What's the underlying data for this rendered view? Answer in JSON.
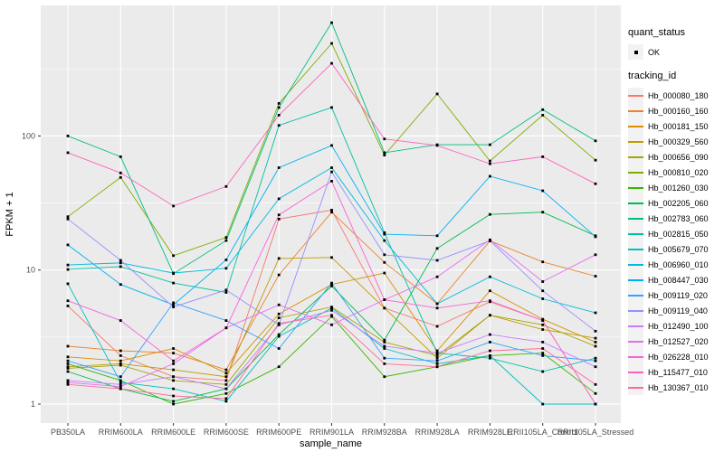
{
  "chart_data": {
    "type": "line",
    "title": "",
    "xlabel": "sample_name",
    "ylabel": "FPKM + 1",
    "yscale": "log10",
    "y_axis_ticks": [
      "1",
      "10",
      "100"
    ],
    "y_range": [
      0.7,
      950
    ],
    "grid": "major+minor, white on grey panel",
    "legend_position": "right",
    "panel_bg": "#EBEBEB",
    "categories": [
      "PB350LA",
      "RRIM600LA",
      "RRIM600LE",
      "RRIM600SE",
      "RRIM600PE",
      "RRIM901LA",
      "RRIM928BA",
      "RRIM928LA",
      "RRIM928LE",
      "RRII105LA_Control",
      "RRII105LA_Stressed"
    ],
    "legend": {
      "quant_status_title": "quant_status",
      "quant_status_items": [
        "OK"
      ],
      "tracking_title": "tracking_id"
    },
    "point_shape": "small-black-square",
    "series": [
      {
        "name": "Hb_000080_180",
        "color": "#F8766D",
        "values": [
          5.4,
          2.3,
          1.6,
          1.5,
          24,
          28,
          5.2,
          3.8,
          5.8,
          4.2,
          1.0
        ]
      },
      {
        "name": "Hb_000160_160",
        "color": "#EA8331",
        "values": [
          2.7,
          2.5,
          2.4,
          1.8,
          9.2,
          27,
          11.4,
          5.6,
          16.5,
          11.5,
          9.0
        ]
      },
      {
        "name": "Hb_000181_150",
        "color": "#D89000",
        "values": [
          2.25,
          2.1,
          2.6,
          1.7,
          4.7,
          7.8,
          9.5,
          2.5,
          7.0,
          4.3,
          2.9
        ]
      },
      {
        "name": "Hb_000329_560",
        "color": "#C09B00",
        "values": [
          1.9,
          2.0,
          1.8,
          1.6,
          12.2,
          12.4,
          5.2,
          2.2,
          4.6,
          3.6,
          3.1
        ]
      },
      {
        "name": "Hb_000656_090",
        "color": "#A3A500",
        "values": [
          1.85,
          1.95,
          1.5,
          1.4,
          4.4,
          5.3,
          2.9,
          2.3,
          4.6,
          3.9,
          2.7
        ]
      },
      {
        "name": "Hb_000810_020",
        "color": "#7CAE00",
        "values": [
          25,
          49,
          12.8,
          17.5,
          175,
          490,
          72,
          206,
          65,
          143,
          66
        ]
      },
      {
        "name": "Hb_001260_030",
        "color": "#39B600",
        "values": [
          2.0,
          1.5,
          1.0,
          1.2,
          1.9,
          4.5,
          1.6,
          1.9,
          2.3,
          2.4,
          1.2
        ]
      },
      {
        "name": "Hb_002205_060",
        "color": "#00BB4E",
        "values": [
          1.75,
          1.3,
          1.05,
          1.3,
          3.3,
          7.6,
          3.0,
          14.5,
          26,
          27,
          18
        ]
      },
      {
        "name": "Hb_002783_060",
        "color": "#00BF7D",
        "values": [
          100,
          70,
          9.4,
          16.6,
          163,
          700,
          75,
          86,
          86,
          157,
          92
        ]
      },
      {
        "name": "Hb_002815_050",
        "color": "#00C1A3",
        "values": [
          10.1,
          10.6,
          8.0,
          6.8,
          120,
          163,
          19,
          2.4,
          2.2,
          1.75,
          2.2
        ]
      },
      {
        "name": "Hb_005679_070",
        "color": "#00BFC4",
        "values": [
          7.9,
          1.45,
          1.3,
          1.05,
          3.2,
          5.2,
          2.6,
          2.0,
          2.3,
          1.0,
          1.0
        ]
      },
      {
        "name": "Hb_006960_010",
        "color": "#00BAE0",
        "values": [
          10.9,
          11.3,
          9.5,
          10.3,
          34,
          58,
          16.6,
          5.6,
          8.9,
          6.1,
          4.8
        ]
      },
      {
        "name": "Hb_008447_030",
        "color": "#00B0F6",
        "values": [
          15.4,
          7.8,
          5.5,
          11.9,
          58,
          85,
          18.5,
          18,
          50,
          39,
          17.7
        ]
      },
      {
        "name": "Hb_009119_020",
        "color": "#35A2FF",
        "values": [
          2.1,
          1.6,
          5.7,
          4.2,
          2.6,
          8.0,
          2.2,
          2.1,
          2.9,
          2.3,
          2.1
        ]
      },
      {
        "name": "Hb_009119_040",
        "color": "#9590FF",
        "values": [
          24,
          11.8,
          5.3,
          7.1,
          3.9,
          54,
          13,
          11.8,
          16.5,
          7.0,
          3.5
        ]
      },
      {
        "name": "Hb_012490_100",
        "color": "#C77CFF",
        "values": [
          1.5,
          1.4,
          1.6,
          1.3,
          3.9,
          5.0,
          2.7,
          2.4,
          3.3,
          2.9,
          1.9
        ]
      },
      {
        "name": "Hb_012527_020",
        "color": "#E76BF3",
        "values": [
          1.45,
          1.35,
          2.0,
          3.7,
          5.5,
          3.9,
          6.0,
          8.9,
          16.8,
          8.2,
          13
        ]
      },
      {
        "name": "Hb_026228_010",
        "color": "#FA62DB",
        "values": [
          5.9,
          4.2,
          2.1,
          3.7,
          25.8,
          46,
          6.0,
          5.2,
          5.9,
          4.2,
          1.0
        ]
      },
      {
        "name": "Hb_115477_010",
        "color": "#FF62BC",
        "values": [
          75,
          53,
          30,
          42,
          143,
          348,
          95,
          85,
          62,
          70,
          44
        ]
      },
      {
        "name": "Hb_130367_010",
        "color": "#FF6A98",
        "values": [
          1.4,
          1.3,
          1.15,
          1.1,
          4.0,
          4.6,
          2.0,
          1.9,
          2.5,
          2.6,
          1.4
        ]
      }
    ]
  }
}
